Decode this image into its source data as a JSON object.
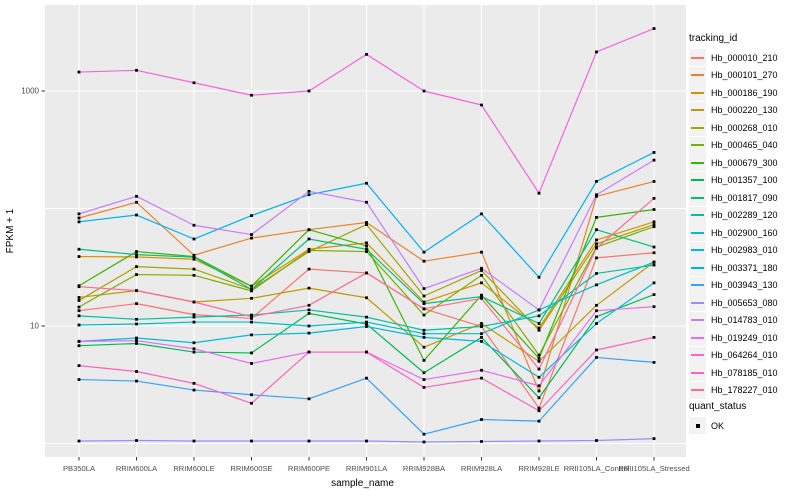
{
  "chart_data": {
    "type": "line",
    "title": "",
    "xlabel": "sample_name",
    "ylabel": "FPKM + 1",
    "y_scale": "log10",
    "y_tick_labels": [
      "10",
      "1000"
    ],
    "y_tick_values": [
      10,
      1000
    ],
    "y_gridline_values": [
      1,
      10,
      100,
      1000
    ],
    "ylim": [
      1,
      5000
    ],
    "grid": "on",
    "legend_position": "right",
    "point_color": "#000000",
    "categories": [
      "PB350LA",
      "RRIM600LA",
      "RRIM600LE",
      "RRIM600SE",
      "RRIM600PE",
      "RRIM901LA",
      "RRIM928BA",
      "RRIM928LA",
      "RRIM928LE",
      "RRII105LA_Control",
      "RRII105LA_Stressed"
    ],
    "series": [
      {
        "name": "Hb_000010_210",
        "color": "#F8766D",
        "values": [
          13.5,
          15.5,
          12.5,
          11.6,
          30.5,
          28.3,
          14,
          9.9,
          2.0,
          38,
          42
        ]
      },
      {
        "name": "Hb_000101_270",
        "color": "#EA8331",
        "values": [
          83,
          113,
          40,
          56,
          66,
          76,
          35.6,
          42.5,
          2.8,
          127,
          170
        ]
      },
      {
        "name": "Hb_000186_190",
        "color": "#D89000",
        "values": [
          39,
          38.7,
          37,
          21.8,
          45,
          51,
          16,
          23.3,
          9.6,
          54,
          77
        ]
      },
      {
        "name": "Hb_000220_130",
        "color": "#C09B00",
        "values": [
          17.5,
          20,
          16,
          17.2,
          21,
          17.4,
          6.6,
          10.5,
          5.0,
          15,
          35
        ]
      },
      {
        "name": "Hb_000268_010",
        "color": "#A3A500",
        "values": [
          16.5,
          32,
          30.5,
          20.5,
          43,
          73,
          18,
          29.7,
          9.2,
          50,
          73
        ]
      },
      {
        "name": "Hb_000465_040",
        "color": "#7CAE00",
        "values": [
          14.5,
          27.4,
          27,
          19.9,
          44,
          43,
          12.4,
          27,
          5.65,
          47,
          70
        ]
      },
      {
        "name": "Hb_000679_300",
        "color": "#39B600",
        "values": [
          22,
          43,
          39,
          21.8,
          66,
          48,
          5.1,
          18.3,
          5.3,
          84,
          98
        ]
      },
      {
        "name": "Hb_001357_100",
        "color": "#00BB4E",
        "values": [
          6.8,
          7.1,
          6.0,
          5.9,
          12.8,
          10.4,
          4.0,
          8.0,
          2.45,
          12,
          18.5
        ]
      },
      {
        "name": "Hb_001817_090",
        "color": "#00BF7D",
        "values": [
          45,
          40.5,
          38.5,
          20.5,
          55,
          45,
          15.5,
          17.8,
          10.5,
          66,
          47
        ]
      },
      {
        "name": "Hb_002289_120",
        "color": "#00C1A3",
        "values": [
          12.2,
          11.4,
          11.9,
          12.4,
          13.7,
          11.9,
          9.2,
          9.9,
          12.2,
          28,
          33
        ]
      },
      {
        "name": "Hb_002900_160",
        "color": "#00BFC4",
        "values": [
          10.2,
          10.4,
          10.8,
          10.8,
          10,
          10.8,
          8.6,
          8.6,
          13.7,
          22.4,
          35
        ]
      },
      {
        "name": "Hb_002983_010",
        "color": "#00BAE0",
        "values": [
          7.4,
          7.9,
          7.2,
          8.4,
          8.7,
          9.9,
          8.0,
          7.4,
          3.66,
          10.5,
          23.3
        ]
      },
      {
        "name": "Hb_003371_180",
        "color": "#00B0F6",
        "values": [
          77,
          88,
          55,
          87,
          131,
          164,
          42.5,
          90,
          26,
          170,
          300
        ]
      },
      {
        "name": "Hb_003943_130",
        "color": "#35A2FF",
        "values": [
          3.5,
          3.4,
          2.85,
          2.6,
          2.4,
          3.6,
          1.2,
          1.6,
          1.55,
          5.4,
          4.9
        ]
      },
      {
        "name": "Hb_005653_080",
        "color": "#9590FF",
        "values": [
          1.05,
          1.06,
          1.05,
          1.05,
          1.05,
          1.05,
          1.03,
          1.04,
          1.05,
          1.06,
          1.1
        ]
      },
      {
        "name": "Hb_014783_010",
        "color": "#C77CFF",
        "values": [
          90,
          127,
          72,
          60,
          140,
          113,
          20.8,
          31,
          13.7,
          131,
          258
        ]
      },
      {
        "name": "Hb_019249_010",
        "color": "#E76BF3",
        "values": [
          7.4,
          7.5,
          6.4,
          4.8,
          6.0,
          6.0,
          3.5,
          4.2,
          3.1,
          13.5,
          14.6
        ]
      },
      {
        "name": "Hb_064264_010",
        "color": "#FA62DB",
        "values": [
          1450,
          1500,
          1175,
          920,
          1000,
          2050,
          1000,
          760,
          135,
          2150,
          3400
        ]
      },
      {
        "name": "Hb_078185_010",
        "color": "#FF62BC",
        "values": [
          4.6,
          4.1,
          3.25,
          2.2,
          6.0,
          6.0,
          3.0,
          3.6,
          1.9,
          6.25,
          8.0
        ]
      },
      {
        "name": "Hb_178227_010",
        "color": "#FF6A98",
        "values": [
          21.6,
          20,
          16,
          12,
          15,
          28.3,
          14,
          17.2,
          4.3,
          46,
          122
        ]
      }
    ]
  },
  "legend_tracking": {
    "title": "tracking_id"
  },
  "legend_quant": {
    "title": "quant_status",
    "items": [
      {
        "label": "OK"
      }
    ]
  },
  "colors": {
    "panel_bg": "#EBEBEB",
    "gridline": "#FFFFFF",
    "tick_text": "#4D4D4D",
    "axis_title_text": "#000000",
    "tick_mark": "#333333",
    "legend_key_bg": "#F2F2F2",
    "point": "#000000"
  }
}
